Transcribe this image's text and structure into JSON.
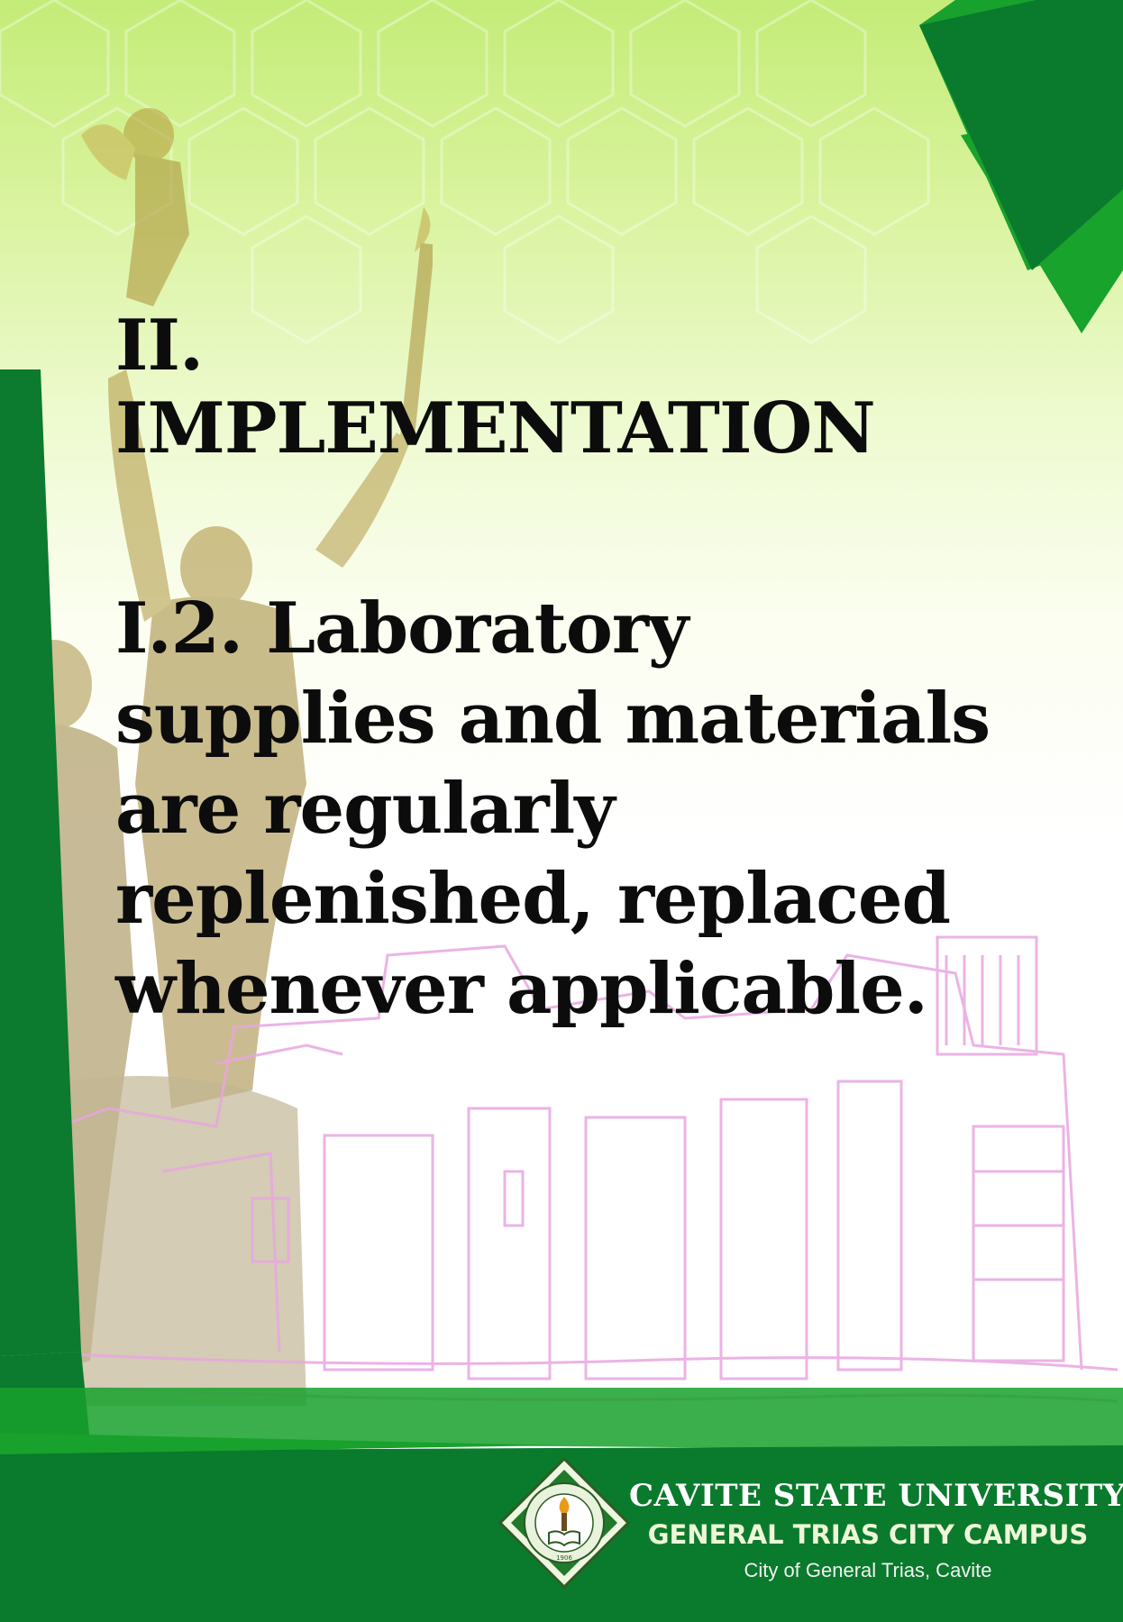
{
  "document": {
    "heading_line1": "II.",
    "heading_line2": "IMPLEMENTATION",
    "item_line1": "I.2. Laboratory",
    "item_line2": "supplies and materials",
    "item_line3": "are regularly",
    "item_line4": "replenished, replaced",
    "item_line5": "whenever applicable."
  },
  "footer": {
    "university": "CAVITE STATE UNIVERSITY",
    "campus": "GENERAL TRIAS CITY CAMPUS",
    "location": "City of General Trias, Cavite",
    "seal_year": "1906"
  },
  "colors": {
    "dark_green": "#0a7a2c",
    "bright_green": "#18a12c",
    "text": "#0c0c0c",
    "light_lime": "#c4ec78"
  },
  "icons": [
    "university-seal-icon",
    "torch-icon",
    "book-icon"
  ]
}
